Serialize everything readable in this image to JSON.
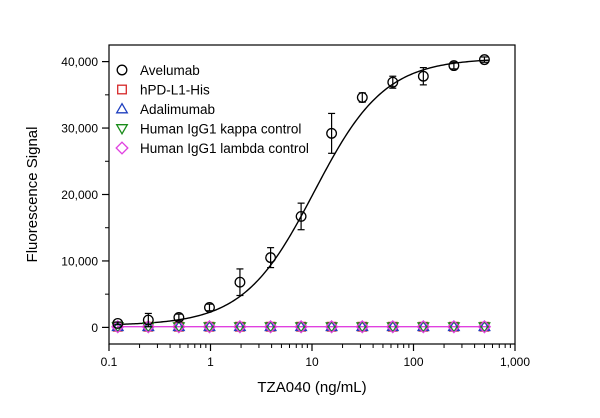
{
  "chart_data": {
    "type": "scatter",
    "title": "",
    "xlabel": "TZA040 (ng/mL)",
    "ylabel": "Fluorescence Signal",
    "xscale": "log",
    "xlim": [
      0.1,
      1000
    ],
    "ylim": [
      -2500,
      42500
    ],
    "grid": false,
    "legend_position": "top-left",
    "x_ticks": [
      {
        "value": 0.1,
        "label": "0.1"
      },
      {
        "value": 1,
        "label": "1"
      },
      {
        "value": 10,
        "label": "10"
      },
      {
        "value": 100,
        "label": "100"
      },
      {
        "value": 1000,
        "label": "1,000"
      }
    ],
    "y_ticks": [
      {
        "value": 0,
        "label": "0"
      },
      {
        "value": 10000,
        "label": "10,000"
      },
      {
        "value": 20000,
        "label": "20,000"
      },
      {
        "value": 30000,
        "label": "30,000"
      },
      {
        "value": 40000,
        "label": "40,000"
      }
    ],
    "x": [
      0.122,
      0.244,
      0.488,
      0.977,
      1.95,
      3.91,
      7.81,
      15.6,
      31.3,
      62.5,
      125,
      250,
      500
    ],
    "series": [
      {
        "name": "Avelumab",
        "marker": "circle",
        "color": "#000000",
        "values": [
          600,
          1100,
          1500,
          3000,
          6800,
          10500,
          16700,
          29200,
          34600,
          36900,
          37800,
          39400,
          40300
        ],
        "errors": [
          200,
          1000,
          500,
          500,
          2000,
          1500,
          2000,
          3000,
          700,
          900,
          1300,
          500,
          400
        ]
      },
      {
        "name": "hPD-L1-His",
        "marker": "square",
        "color": "#d62728",
        "values": [
          100,
          100,
          100,
          100,
          100,
          100,
          100,
          100,
          100,
          100,
          100,
          100,
          100
        ]
      },
      {
        "name": "Adalimumab",
        "marker": "triangle-up",
        "color": "#1f3fbf",
        "values": [
          100,
          100,
          100,
          100,
          100,
          100,
          100,
          100,
          100,
          100,
          100,
          100,
          100
        ]
      },
      {
        "name": "Human IgG1 kappa control",
        "marker": "triangle-down",
        "color": "#1a8c1a",
        "values": [
          100,
          100,
          100,
          100,
          100,
          100,
          100,
          100,
          100,
          100,
          100,
          100,
          100
        ]
      },
      {
        "name": "Human IgG1 lambda control",
        "marker": "diamond",
        "color": "#e040e0",
        "values": [
          100,
          100,
          100,
          100,
          100,
          100,
          100,
          100,
          100,
          100,
          100,
          100,
          100
        ]
      }
    ],
    "fits": [
      {
        "series": "Avelumab",
        "color": "#000000",
        "bottom": 300,
        "top": 40500,
        "ec50": 10.5,
        "hill": 1.25
      },
      {
        "series": "Human IgG1 lambda control",
        "color": "#e040e0",
        "bottom": 100,
        "top": 100,
        "ec50": 10,
        "hill": 1
      }
    ]
  }
}
